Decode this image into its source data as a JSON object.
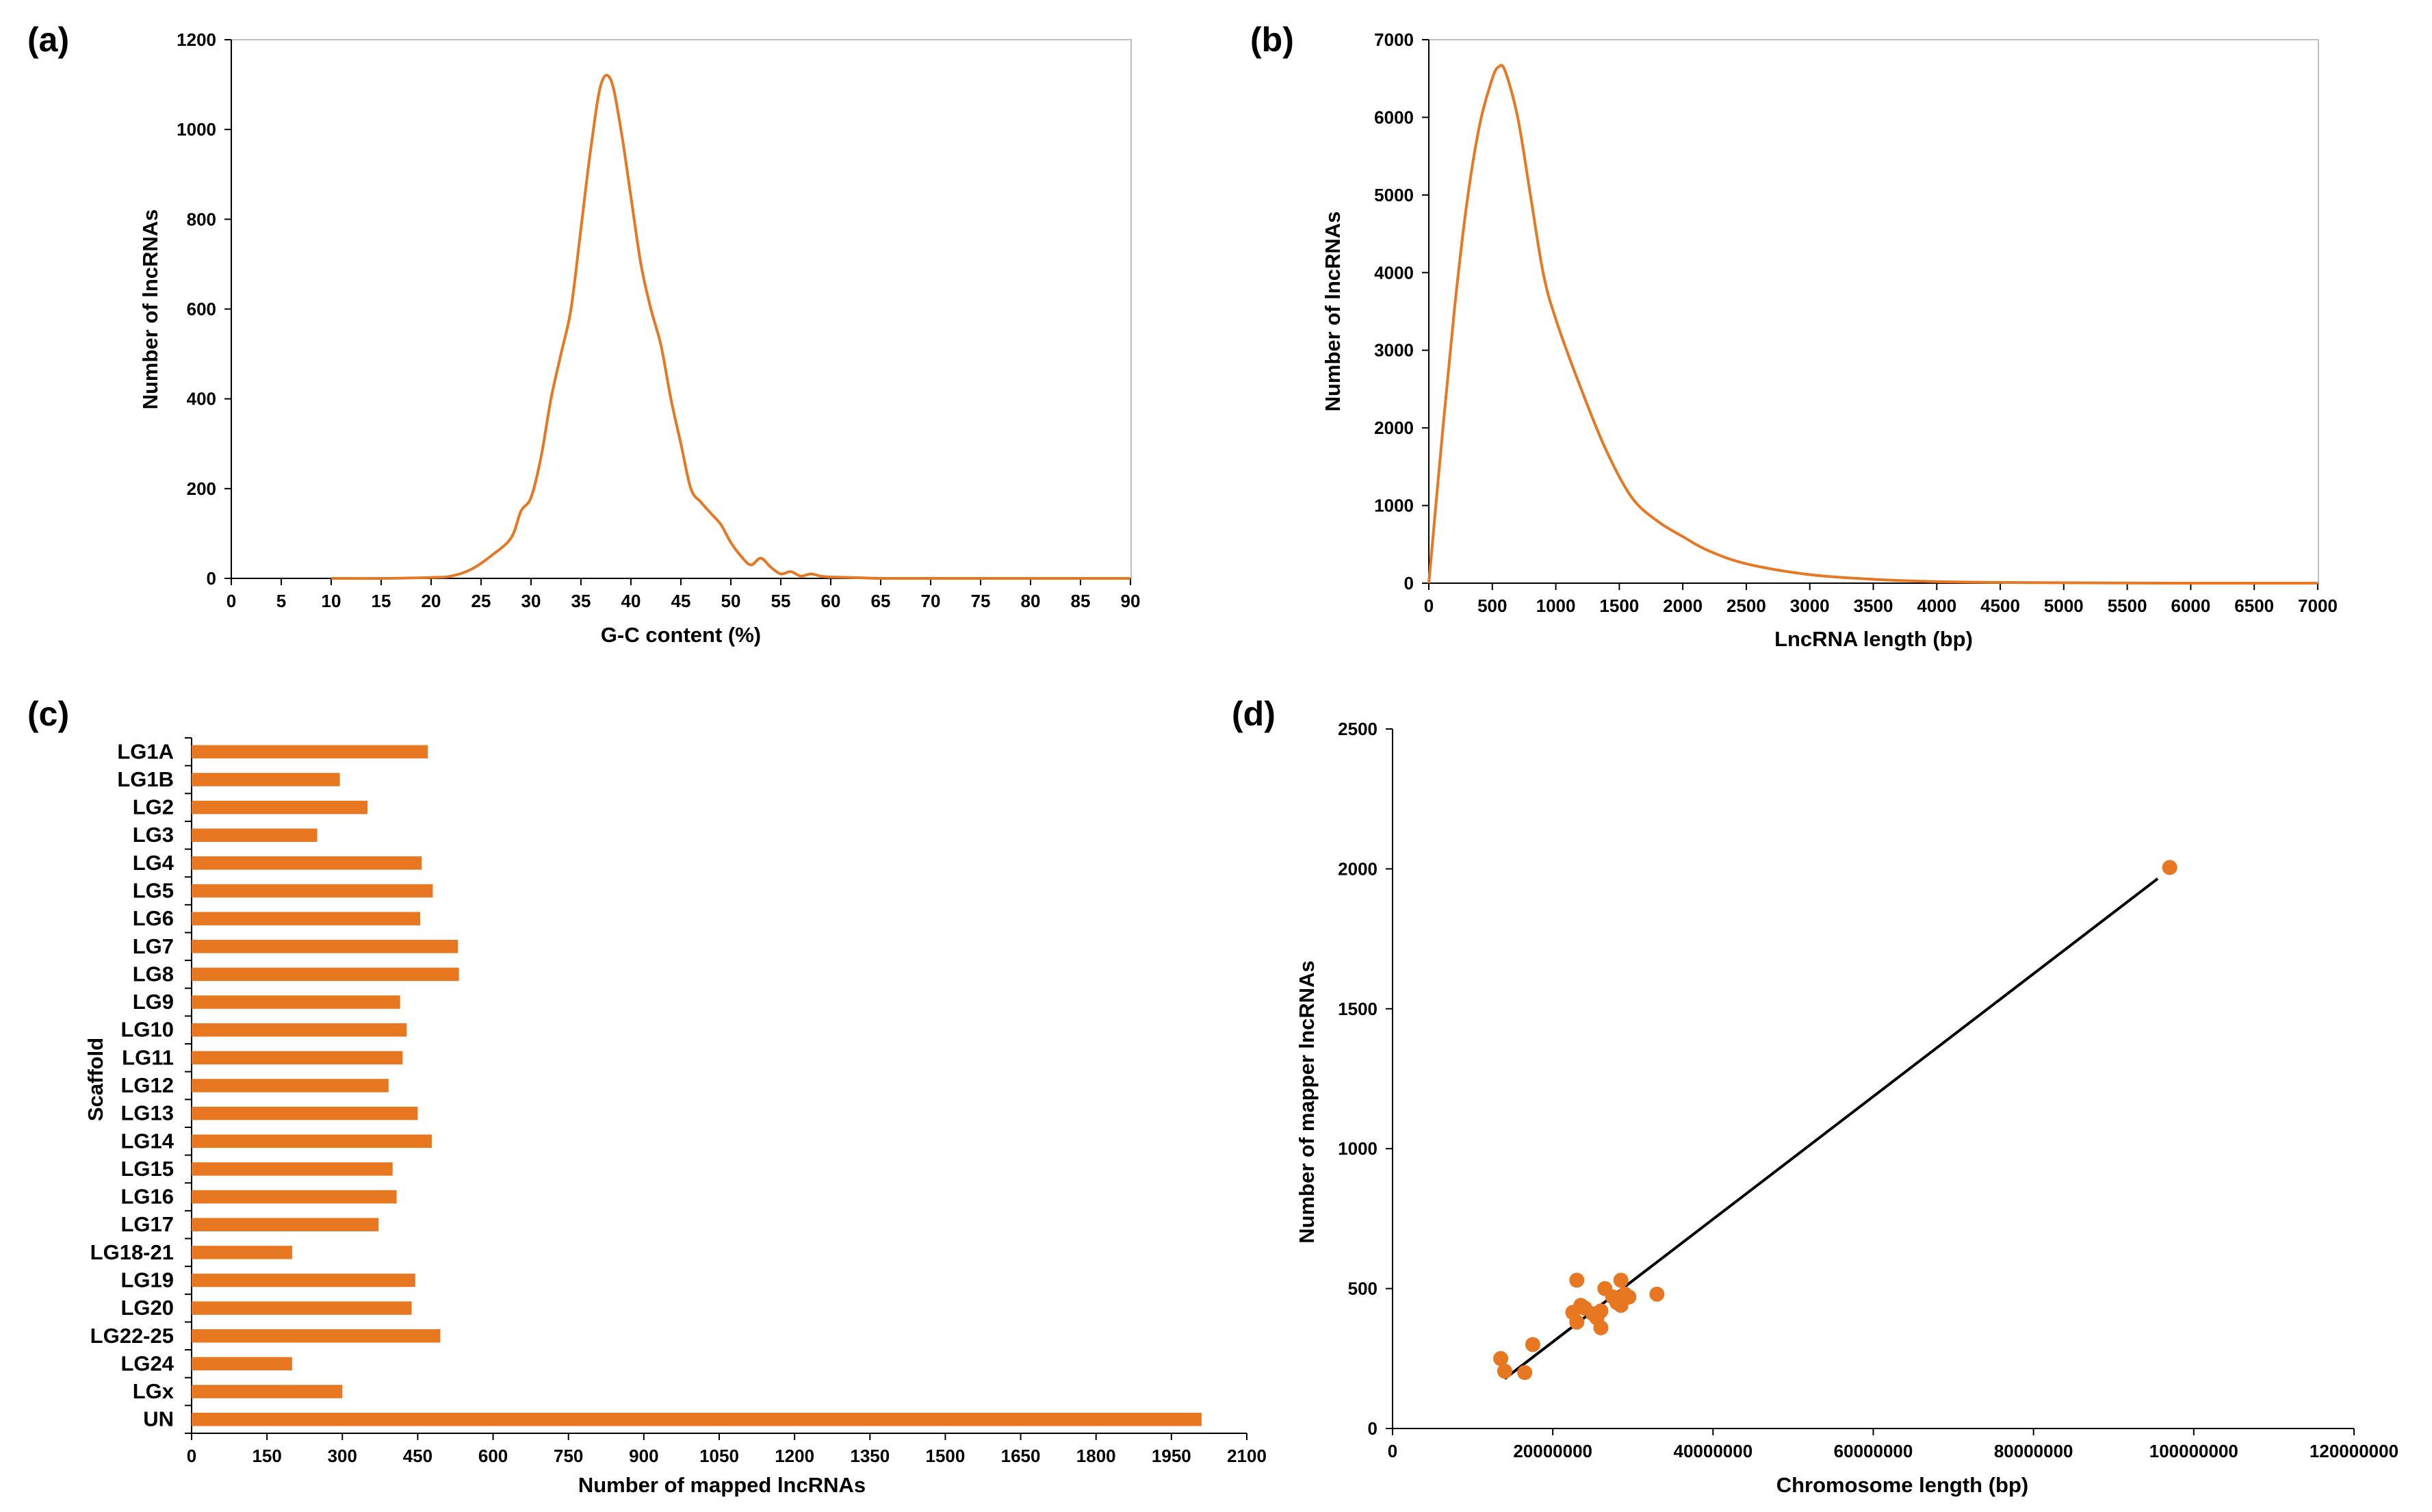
{
  "colors": {
    "series": "#E87722",
    "axis": "#000000",
    "frame": "#bfbfbf",
    "fit_line": "#000000"
  },
  "chart_data": [
    {
      "panel_label": "(a)",
      "type": "line",
      "xlabel": "G-C content (%)",
      "ylabel": "Number of lncRNAs",
      "xlim": [
        0,
        90
      ],
      "ylim": [
        0,
        1200
      ],
      "xticks": [
        0,
        5,
        10,
        15,
        20,
        25,
        30,
        35,
        40,
        45,
        50,
        55,
        60,
        65,
        70,
        75,
        80,
        85,
        90
      ],
      "yticks": [
        0,
        200,
        400,
        600,
        800,
        1000,
        1200
      ],
      "grid": false,
      "x": [
        10,
        15,
        20,
        22,
        24,
        26,
        28,
        29,
        30,
        31,
        32,
        33,
        34,
        35,
        36,
        37,
        38,
        39,
        40,
        41,
        42,
        43,
        44,
        45,
        46,
        47,
        48,
        49,
        50,
        51,
        52,
        53,
        54,
        55,
        56,
        57,
        58,
        59,
        60,
        62,
        65,
        70,
        80,
        90
      ],
      "y": [
        0,
        0,
        2,
        5,
        20,
        50,
        90,
        150,
        180,
        270,
        400,
        500,
        600,
        780,
        960,
        1100,
        1110,
        1000,
        850,
        700,
        600,
        520,
        400,
        300,
        200,
        170,
        145,
        120,
        80,
        50,
        30,
        45,
        25,
        10,
        15,
        5,
        10,
        5,
        3,
        2,
        0,
        0,
        0,
        0
      ]
    },
    {
      "panel_label": "(b)",
      "type": "line",
      "xlabel": "LncRNA length (bp)",
      "ylabel": "Number of lncRNAs",
      "xlim": [
        0,
        7000
      ],
      "ylim": [
        0,
        7000
      ],
      "xticks": [
        0,
        500,
        1000,
        1500,
        2000,
        2500,
        3000,
        3500,
        4000,
        4500,
        5000,
        5500,
        6000,
        6500,
        7000
      ],
      "yticks": [
        0,
        1000,
        2000,
        3000,
        4000,
        5000,
        6000,
        7000
      ],
      "grid": false,
      "x": [
        0,
        100,
        200,
        300,
        400,
        500,
        550,
        600,
        700,
        800,
        900,
        1000,
        1200,
        1400,
        1600,
        1800,
        2000,
        2200,
        2500,
        3000,
        3500,
        4000,
        4500,
        5000,
        6000,
        7000
      ],
      "y": [
        0,
        1800,
        3500,
        4900,
        5900,
        6500,
        6650,
        6600,
        6000,
        5000,
        4000,
        3400,
        2500,
        1700,
        1100,
        800,
        600,
        420,
        250,
        110,
        50,
        20,
        10,
        5,
        0,
        0
      ]
    },
    {
      "panel_label": "(c)",
      "type": "bar",
      "orientation": "horizontal",
      "xlabel": "Number of mapped lncRNAs",
      "ylabel": "Scaffold",
      "xlim": [
        0,
        2100
      ],
      "xticks": [
        0,
        150,
        300,
        450,
        600,
        750,
        900,
        1050,
        1200,
        1350,
        1500,
        1650,
        1800,
        1950,
        2100
      ],
      "grid": false,
      "categories": [
        "LG1A",
        "LG1B",
        "LG2",
        "LG3",
        "LG4",
        "LG5",
        "LG6",
        "LG7",
        "LG8",
        "LG9",
        "LG10",
        "LG11",
        "LG12",
        "LG13",
        "LG14",
        "LG15",
        "LG16",
        "LG17",
        "LG18-21",
        "LG19",
        "LG20",
        "LG22-25",
        "LG24",
        "LGx",
        "UN"
      ],
      "values": [
        470,
        295,
        350,
        250,
        458,
        480,
        455,
        530,
        532,
        415,
        428,
        420,
        392,
        450,
        478,
        400,
        408,
        372,
        200,
        445,
        438,
        495,
        200,
        300,
        2010
      ]
    },
    {
      "panel_label": "(d)",
      "type": "scatter",
      "xlabel": "Chromosome length (bp)",
      "ylabel": "Number of mapper lncRNAs",
      "xlim": [
        0,
        120000000
      ],
      "ylim": [
        0,
        2500
      ],
      "xticks": [
        0,
        20000000,
        40000000,
        60000000,
        80000000,
        100000000,
        120000000
      ],
      "xtick_labels": [
        "0",
        "20000000",
        "40000000",
        "60000000",
        "80000000",
        "100000000",
        "120000000"
      ],
      "yticks": [
        0,
        500,
        1000,
        1500,
        2000,
        2500
      ],
      "grid": false,
      "points": [
        [
          97000000,
          2005
        ],
        [
          13500000,
          250
        ],
        [
          14000000,
          205
        ],
        [
          16500000,
          200
        ],
        [
          17500000,
          300
        ],
        [
          23000000,
          530
        ],
        [
          22500000,
          415
        ],
        [
          23500000,
          440
        ],
        [
          23000000,
          380
        ],
        [
          24000000,
          430
        ],
        [
          25000000,
          410
        ],
        [
          25500000,
          395
        ],
        [
          26000000,
          360
        ],
        [
          26000000,
          420
        ],
        [
          26500000,
          500
        ],
        [
          27500000,
          470
        ],
        [
          28000000,
          450
        ],
        [
          28500000,
          530
        ],
        [
          28500000,
          440
        ],
        [
          29000000,
          480
        ],
        [
          29500000,
          470
        ],
        [
          33000000,
          480
        ]
      ],
      "trendline": {
        "x": [
          14000000,
          95500000
        ],
        "y": [
          178,
          1965
        ]
      }
    }
  ]
}
